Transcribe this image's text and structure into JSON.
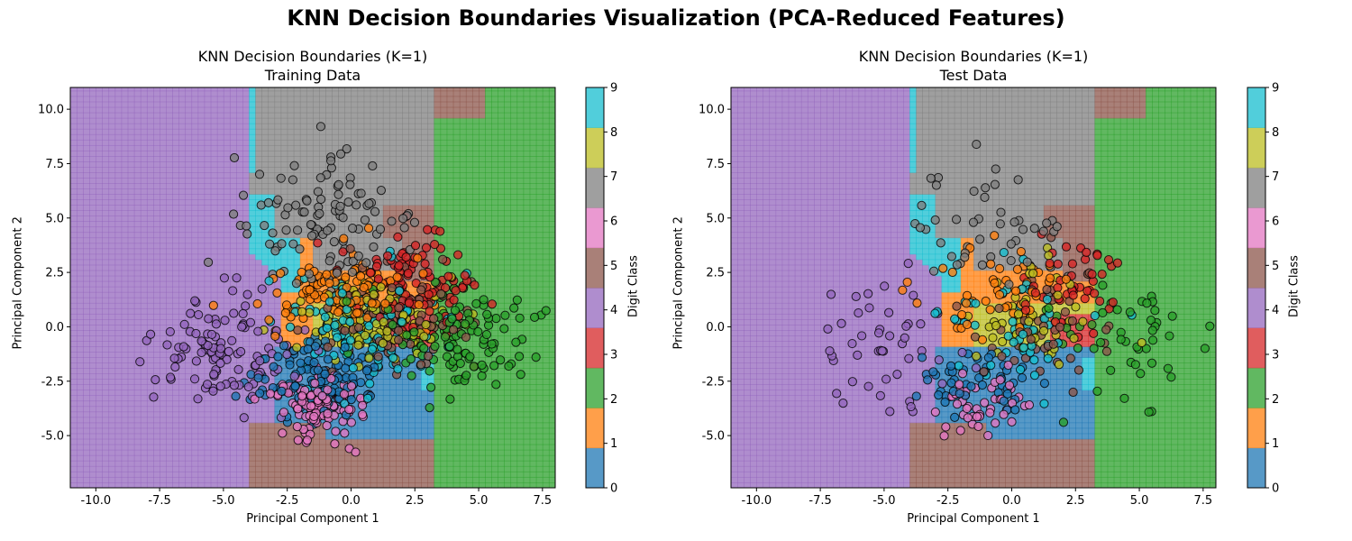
{
  "suptitle": "KNN Decision Boundaries Visualization (PCA-Reduced Features)",
  "colorbar_label": "Digit Class",
  "colors": [
    "#1f77b4",
    "#ff7f0e",
    "#2ca02c",
    "#d62728",
    "#9467bd",
    "#8c564b",
    "#e377c2",
    "#7f7f7f",
    "#bcbd22",
    "#17becf"
  ],
  "chart_data": [
    {
      "type": "scatter",
      "title_line1": "KNN Decision Boundaries (K=1)",
      "title_line2": "Training Data",
      "xlabel": "Principal Component 1",
      "ylabel": "Principal Component 2",
      "xlim": [
        -11,
        8
      ],
      "ylim": [
        -7.4,
        11
      ],
      "xticks": [
        "-10.0",
        "-7.5",
        "-5.0",
        "-2.5",
        "0.0",
        "2.5",
        "5.0",
        "7.5"
      ],
      "yticks": [
        "-5.0",
        "-2.5",
        "0.0",
        "2.5",
        "5.0",
        "7.5",
        "10.0"
      ],
      "colorbar_ticks": [
        "0",
        "1",
        "2",
        "3",
        "4",
        "5",
        "6",
        "7",
        "8",
        "9"
      ],
      "point_count": 1100
    },
    {
      "type": "scatter",
      "title_line1": "KNN Decision Boundaries (K=1)",
      "title_line2": "Test Data",
      "xlabel": "Principal Component 1",
      "ylabel": "Principal Component 2",
      "xlim": [
        -11,
        8
      ],
      "ylim": [
        -7.4,
        11
      ],
      "xticks": [
        "-10.0",
        "-7.5",
        "-5.0",
        "-2.5",
        "0.0",
        "2.5",
        "5.0",
        "7.5"
      ],
      "yticks": [
        "-5.0",
        "-2.5",
        "0.0",
        "2.5",
        "5.0",
        "7.5",
        "10.0"
      ],
      "colorbar_ticks": [
        "0",
        "1",
        "2",
        "3",
        "4",
        "5",
        "6",
        "7",
        "8",
        "9"
      ],
      "point_count": 480
    }
  ]
}
